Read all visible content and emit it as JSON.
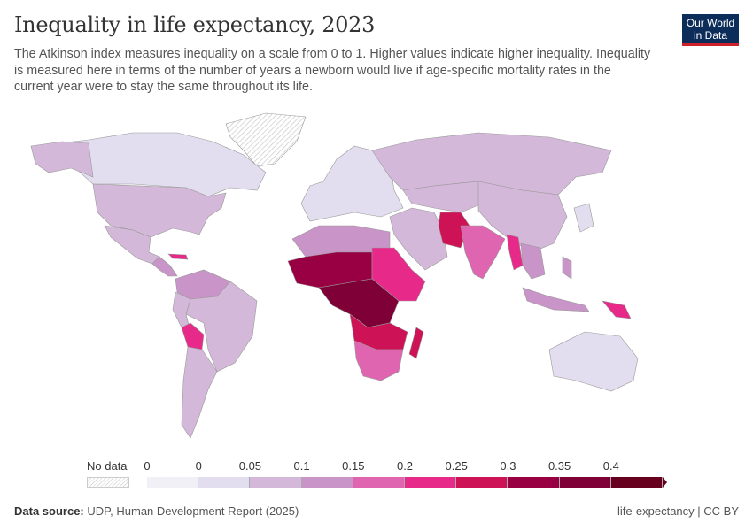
{
  "header": {
    "title": "Inequality in life expectancy, 2023",
    "subtitle": "The Atkinson index measures inequality on a scale from 0 to 1. Higher values indicate higher inequality. Inequality is measured here in terms of the number of years a newborn would live if age-specific mortality rates in the current year were to stay the same throughout its life.",
    "logo": "Our World in Data"
  },
  "legend": {
    "no_data": "No data",
    "ticks": [
      "0",
      "0",
      "0.05",
      "0.1",
      "0.15",
      "0.2",
      "0.25",
      "0.3",
      "0.35",
      "0.4"
    ],
    "colors": [
      "#f2f0f7",
      "#e3deef",
      "#d4b8d9",
      "#c994c7",
      "#df65b0",
      "#e7298a",
      "#ce1256",
      "#980043",
      "#7e0036",
      "#67001f"
    ]
  },
  "footer": {
    "source_label": "Data source:",
    "source": "UDP, Human Development Report (2025)",
    "license": "life-expectancy | CC BY"
  }
}
